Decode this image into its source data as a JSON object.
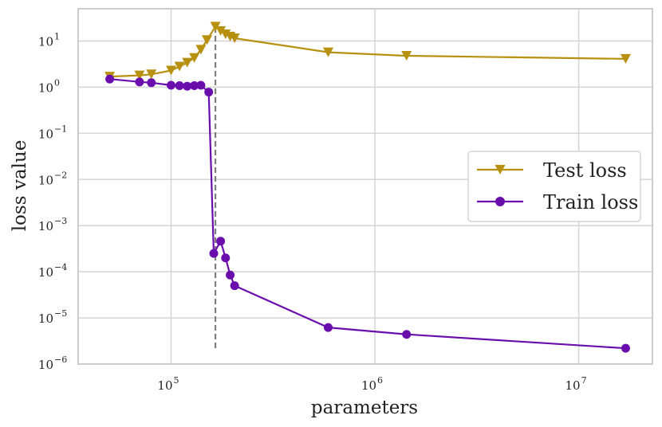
{
  "chart_data": {
    "type": "line",
    "title": "",
    "xlabel": "parameters",
    "ylabel": "loss value",
    "xscale": "log",
    "yscale": "log",
    "xlim": [
      35000,
      23000000
    ],
    "ylim": [
      1e-06,
      50
    ],
    "xticks": [
      {
        "value": 100000,
        "base": "10",
        "exp": "5"
      },
      {
        "value": 1000000,
        "base": "10",
        "exp": "6"
      },
      {
        "value": 10000000,
        "base": "10",
        "exp": "7"
      }
    ],
    "yticks": [
      {
        "value": 10,
        "base": "10",
        "exp": "1"
      },
      {
        "value": 1,
        "base": "10",
        "exp": "0"
      },
      {
        "value": 0.1,
        "base": "10",
        "exp": "−1"
      },
      {
        "value": 0.01,
        "base": "10",
        "exp": "−2"
      },
      {
        "value": 0.001,
        "base": "10",
        "exp": "−3"
      },
      {
        "value": 0.0001,
        "base": "10",
        "exp": "−4"
      },
      {
        "value": 1e-05,
        "base": "10",
        "exp": "−5"
      },
      {
        "value": 1e-06,
        "base": "10",
        "exp": "−6"
      }
    ],
    "grid": true,
    "legend_position": "center-right",
    "vline": {
      "x": 165000,
      "y_range": [
        2e-06,
        20
      ],
      "style": "dashed",
      "color": "#7f7f7f"
    },
    "series": [
      {
        "name": "Test loss",
        "color": "#b8900f",
        "marker": "triangle-down",
        "x": [
          50000,
          70000,
          80000,
          100000,
          110000,
          120000,
          130000,
          140000,
          150000,
          165000,
          175000,
          185000,
          195000,
          205000,
          590000,
          1430000,
          17000000
        ],
        "y": [
          1.7,
          1.8,
          1.9,
          2.3,
          2.8,
          3.4,
          4.3,
          6.5,
          10.5,
          20.5,
          16.5,
          14.0,
          12.5,
          11.5,
          5.7,
          4.8,
          4.1
        ]
      },
      {
        "name": "Train loss",
        "color": "#6a0dad",
        "marker": "circle",
        "x": [
          50000,
          70000,
          80000,
          100000,
          110000,
          120000,
          130000,
          140000,
          153000,
          162000,
          175000,
          185000,
          195000,
          205000,
          590000,
          1430000,
          17000000
        ],
        "y": [
          1.5,
          1.3,
          1.25,
          1.1,
          1.08,
          1.05,
          1.08,
          1.1,
          0.78,
          0.00025,
          0.00046,
          0.0002,
          8.5e-05,
          5e-05,
          6.2e-06,
          4.4e-06,
          2.2e-06
        ]
      }
    ]
  }
}
